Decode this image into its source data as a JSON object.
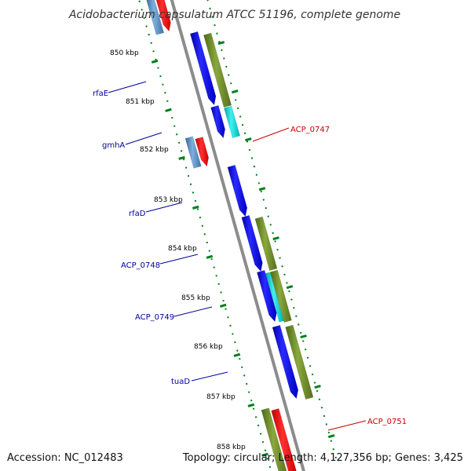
{
  "title": "Acidobacterium capsulatum ATCC 51196, complete genome",
  "accession_label": "Accession: NC_012483",
  "topology_label": "Topology: circular; Length: 4,127,356 bp; Genes: 3,425",
  "kbp_labels": [
    "850 kbp",
    "851 kbp",
    "852 kbp",
    "853 kbp",
    "854 kbp",
    "855 kbp",
    "856 kbp",
    "857 kbp",
    "858 kbp"
  ],
  "gene_labels": {
    "rfaE": "rfaE",
    "gmhA": "gmhA",
    "rfaD": "rfaD",
    "ACP_0748": "ACP_0748",
    "ACP_0749": "ACP_0749",
    "tuaD": "tuaD",
    "ACP_0747": "ACP_0747",
    "ACP_0751": "ACP_0751"
  },
  "colors": {
    "backbone": "#8c8c8c",
    "tick": "#00801a",
    "cds_forward": "#0000f0",
    "cds_olive": "#6f8f2a",
    "cds_cyan": "#00c8c8",
    "cds_red": "#f00000",
    "cds_steel": "#4f87b8",
    "label_blue": "#00009a",
    "label_red": "#c80000"
  }
}
